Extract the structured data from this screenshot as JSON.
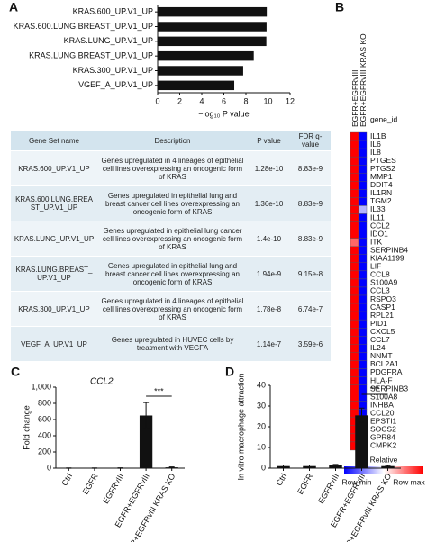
{
  "chart_data": [
    {
      "type": "bar",
      "panel": "A",
      "horizontal": true,
      "categories": [
        "KRAS.600_UP.V1_UP",
        "KRAS.600.LUNG.BREAST_UP.V1_UP",
        "KRAS.LUNG_UP.V1_UP",
        "KRAS.LUNG.BREAST_UP.V1_UP",
        "KRAS.300_UP.V1_UP",
        "VGEF_A_UP.V1_UP"
      ],
      "values": [
        9.89,
        9.87,
        9.85,
        8.71,
        7.75,
        6.94
      ],
      "color": "#111111",
      "xlabel": "−log₁₀ P value",
      "xlim": [
        0,
        12
      ],
      "xticks": [
        0,
        2,
        4,
        6,
        8,
        10,
        12
      ]
    },
    {
      "type": "heatmap",
      "panel": "B",
      "x": [
        "EGFR+EGFRvIII",
        "EGFR+EGFRvIII KRAS KO"
      ],
      "row_header": "gene_id",
      "y": [
        "IL1B",
        "IL6",
        "IL8",
        "PTGES",
        "PTGS2",
        "MMP1",
        "DDIT4",
        "IL1RN",
        "TGM2",
        "IL33",
        "IL11",
        "CCL2",
        "IDO1",
        "ITK",
        "SERPINB4",
        "KIAA1199",
        "LIF",
        "CCL8",
        "S100A9",
        "CCL3",
        "RSPO3",
        "CASP1",
        "RPL21",
        "PID1",
        "CXCL5",
        "CCL7",
        "IL24",
        "NNMT",
        "BCL2A1",
        "PDGFRA",
        "HLA-F",
        "SERPINB3",
        "S100A8",
        "INHBA",
        "CCL20",
        "EPSTI1",
        "SOCS2",
        "GPR84",
        "CMPK2"
      ],
      "values": [
        [
          1,
          -1
        ],
        [
          1,
          -1
        ],
        [
          1,
          -1
        ],
        [
          1,
          -1
        ],
        [
          1,
          -1
        ],
        [
          1,
          -1
        ],
        [
          1,
          -1
        ],
        [
          1,
          -1
        ],
        [
          1,
          -1
        ],
        [
          1,
          -0.3
        ],
        [
          1,
          -1
        ],
        [
          1,
          -1
        ],
        [
          1,
          -1
        ],
        [
          0.6,
          -1
        ],
        [
          1,
          -1
        ],
        [
          1,
          -1
        ],
        [
          1,
          -1
        ],
        [
          1,
          -1
        ],
        [
          1,
          -1
        ],
        [
          1,
          -1
        ],
        [
          1,
          -1
        ],
        [
          1,
          -1
        ],
        [
          1,
          -1
        ],
        [
          1,
          -1
        ],
        [
          1,
          -1
        ],
        [
          1,
          -1
        ],
        [
          1,
          -1
        ],
        [
          1,
          -1
        ],
        [
          1,
          -1
        ],
        [
          1,
          -1
        ],
        [
          1,
          -1
        ],
        [
          1,
          -1
        ],
        [
          1,
          -1
        ],
        [
          1,
          -1
        ],
        [
          1,
          -1
        ],
        [
          1,
          -1
        ],
        [
          1,
          -1
        ],
        [
          1,
          -1
        ],
        [
          1,
          -0.5
        ]
      ],
      "zlim": [
        -1,
        1
      ],
      "colors": [
        "#0000ff",
        "#ffffff",
        "#ff0000"
      ],
      "legend_title": "Relative",
      "legend_min": "Row min",
      "legend_max": "Row max"
    },
    {
      "type": "bar",
      "panel": "C",
      "title": "CCL2",
      "ylabel": "Fold change",
      "categories": [
        "Ctrl",
        "EGFR",
        "EGFRvIII",
        "EGFR+EGFRvIII",
        "EGFR+EGFRvIII KRAS KO"
      ],
      "values": [
        1,
        1,
        1,
        650,
        10
      ],
      "errors": [
        2,
        2,
        3,
        160,
        5
      ],
      "color": "#111111",
      "ylim": [
        0,
        1000
      ],
      "yticks": [
        0,
        200,
        400,
        600,
        800,
        {
          "value": 1000,
          "label": "1,000"
        }
      ],
      "annotation": "***"
    },
    {
      "type": "bar",
      "panel": "D",
      "ylabel": "In vitro macrophage attraction",
      "categories": [
        "Ctrl",
        "EGFR",
        "EGFRvIII",
        "EGFR+EGFRvIII",
        "EGFR+EGFRvIII KRAS KO"
      ],
      "values": [
        1,
        1,
        1.3,
        25.5,
        1
      ],
      "errors": [
        0.5,
        0.5,
        0.5,
        3.5,
        0.3
      ],
      "color": "#111111",
      "ylim": [
        0,
        40
      ],
      "yticks": [
        0,
        10,
        20,
        30,
        40
      ],
      "annotation": "***"
    }
  ],
  "table": {
    "columns": [
      "Gene Set name",
      "Description",
      "P value",
      "FDR q-value"
    ],
    "rows": [
      [
        "KRAS.600_UP.V1_UP",
        "Genes upregulated in 4 lineages of epithelial cell lines overexpressing an oncogenic form of KRAS",
        "1.28e-10",
        "8.83e-9"
      ],
      [
        "KRAS.600.LUNG.BREAST_UP.V1_UP",
        "Genes upregulated in epithelial lung and breast cancer cell lines overexpressing an oncogenic form of KRAS",
        "1.36e-10",
        "8.83e-9"
      ],
      [
        "KRAS.LUNG_UP.V1_UP",
        "Genes upregulated in epithelial lung cancer cell lines overexpressing an oncogenic form of KRAS",
        "1.4e-10",
        "8.83e-9"
      ],
      [
        "KRAS.LUNG.BREAST_UP.V1_UP",
        "Genes upregulated in epithelial lung and breast cancer cell lines overexpressing an oncogenic form of KRAS",
        "1.94e-9",
        "9.15e-8"
      ],
      [
        "KRAS.300_UP.V1_UP",
        "Genes upregulated in 4 lineages of epithelial cell lines overexpressing an oncogenic form of KRAS",
        "1.78e-8",
        "6.74e-7"
      ],
      [
        "VEGF_A_UP.V1_UP",
        "Genes upregulated in HUVEC cells by treatment with VEGFA",
        "1.14e-7",
        "3.59e-6"
      ]
    ]
  }
}
